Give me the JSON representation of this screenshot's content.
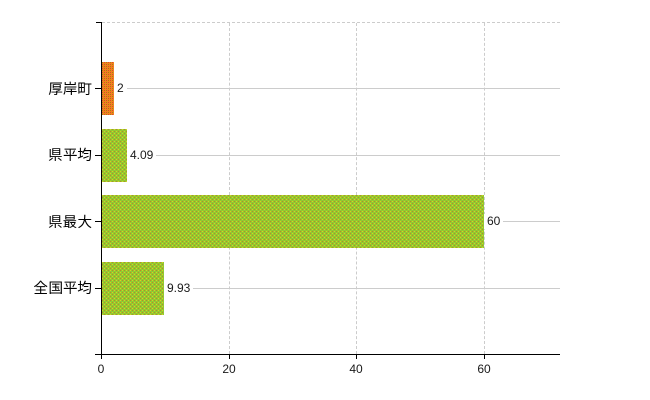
{
  "chart_data": {
    "type": "bar",
    "orientation": "horizontal",
    "title": "",
    "xlabel": "",
    "ylabel": "",
    "categories": [
      "厚岸町",
      "県平均",
      "県最大",
      "全国平均"
    ],
    "values": [
      2,
      4.09,
      60,
      9.93
    ],
    "value_labels": [
      "2",
      "4.09",
      "60",
      "9.93"
    ],
    "xlim": [
      0,
      72
    ],
    "xticks": [
      0,
      20,
      40,
      60
    ],
    "xtick_labels": [
      "0",
      "20",
      "40",
      "60"
    ],
    "grid": true,
    "legend": false,
    "bar_color_keys": [
      "orange",
      "green",
      "green",
      "green"
    ]
  },
  "colors": {
    "background": "#ffffff",
    "axis": "#000000",
    "grid": "#cccccc",
    "label_text": "#000000",
    "number_text": "#1a1a1a",
    "orange": {
      "base": "#ef841d",
      "dot1": "#a87d10",
      "dot2": "#dd4433"
    },
    "green": {
      "base": "#92c932",
      "dot1": "#d6d51d",
      "dot2": "#b68a28"
    }
  }
}
